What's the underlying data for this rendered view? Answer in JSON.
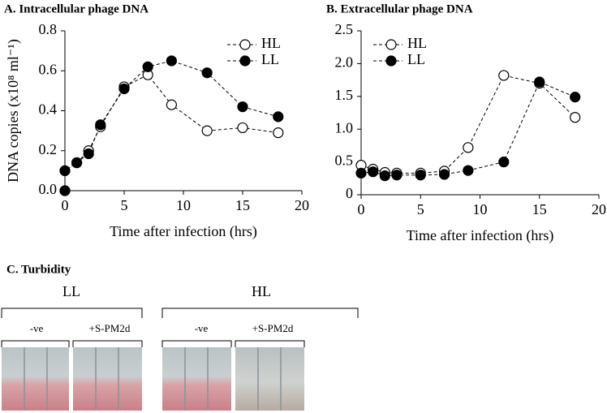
{
  "chart_data": [
    {
      "type": "line",
      "title": "A. Intracellular phage DNA",
      "xlabel": "Time after infection (hrs)",
      "ylabel": "DNA copies (x10⁸ ml⁻¹)",
      "x": [
        0,
        0,
        1,
        2,
        3,
        5,
        7,
        9,
        12,
        15,
        18
      ],
      "series": [
        {
          "name": "HL",
          "color": "#000000",
          "fill": "#ffffff",
          "values": [
            0,
            0.1,
            0.14,
            0.2,
            0.32,
            0.52,
            0.58,
            0.43,
            0.3,
            0.315,
            0.29
          ]
        },
        {
          "name": "LL",
          "color": "#000000",
          "fill": "#000000",
          "values": [
            0,
            0.1,
            0.14,
            0.185,
            0.33,
            0.51,
            0.62,
            0.65,
            0.59,
            0.42,
            0.37
          ]
        }
      ],
      "xlim": [
        0,
        20
      ],
      "xticks": [
        0,
        5,
        10,
        15,
        20
      ],
      "ylim": [
        0,
        0.8
      ],
      "yticks": [
        {
          "value": 0,
          "label": "0.0"
        },
        0.2,
        0.4,
        0.6,
        0.8
      ],
      "legend": "upper-center"
    },
    {
      "type": "line",
      "title": "B. Extracellular phage DNA",
      "xlabel": "Time after infection (hrs)",
      "x": [
        0,
        1,
        2,
        3,
        5,
        7,
        9,
        12,
        15,
        18
      ],
      "series": [
        {
          "name": "HL",
          "color": "#000000",
          "fill": "#ffffff",
          "values": [
            0.45,
            0.39,
            0.34,
            0.33,
            0.33,
            0.36,
            0.72,
            1.82,
            1.7,
            1.18
          ]
        },
        {
          "name": "LL",
          "color": "#000000",
          "fill": "#000000",
          "values": [
            0.33,
            0.35,
            0.29,
            0.3,
            0.3,
            0.31,
            0.37,
            0.5,
            1.72,
            1.49
          ]
        }
      ],
      "xlim": [
        0,
        20
      ],
      "xticks": [
        0,
        5,
        10,
        15,
        20
      ],
      "ylim": [
        0,
        2.5
      ],
      "yticks": [
        0,
        0.5,
        {
          "value": 1,
          "label": "1.0"
        },
        1.5,
        {
          "value": 2,
          "label": "2.0"
        },
        2.5
      ],
      "legend": "upper-left"
    }
  ],
  "turbidity": {
    "title": "C. Turbidity",
    "groups": [
      {
        "label": "LL",
        "subgroups": [
          "-ve",
          "+S-PM2d"
        ]
      },
      {
        "label": "HL",
        "subgroups": [
          "-ve",
          "+S-PM2d"
        ]
      }
    ]
  }
}
